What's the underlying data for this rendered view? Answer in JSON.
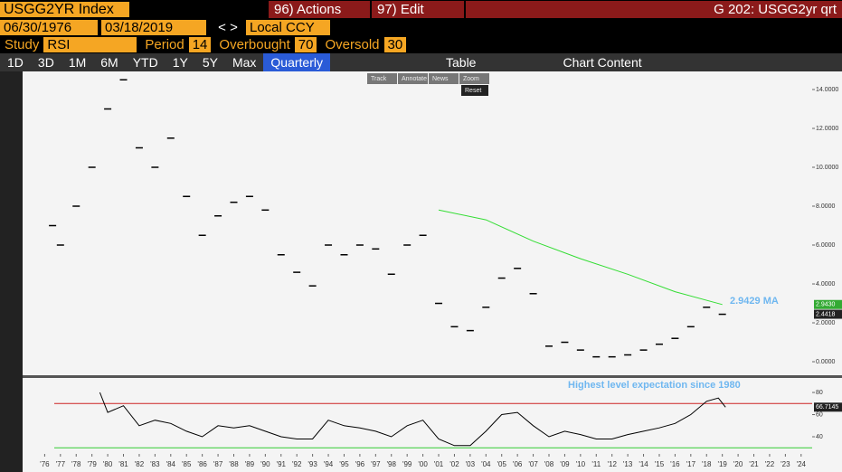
{
  "toolbar": {
    "ticker": "USGG2YR Index",
    "actions": "96) Actions",
    "edit": "97) Edit",
    "title": "G 202: USGG2yr qrt",
    "start_date": "06/30/1976",
    "end_date": "03/18/2019",
    "currency": "Local CCY"
  },
  "study": {
    "label": "Study",
    "value": "RSI",
    "period_label": "Period",
    "period": "14",
    "overbought_label": "Overbought",
    "overbought": "70",
    "oversold_label": "Oversold",
    "oversold": "30"
  },
  "range_buttons": [
    "1D",
    "3D",
    "1M",
    "6M",
    "YTD",
    "1Y",
    "5Y",
    "Max",
    "Quarterly",
    "Table",
    "Chart Content"
  ],
  "mini_toolbar": [
    "Track",
    "Annotate",
    "News",
    "Zoom",
    "Reset"
  ],
  "chart_data": [
    {
      "type": "line",
      "xlim": [
        1974.6,
        2024.7
      ],
      "ylim": [
        -0.65,
        14.93
      ],
      "xticks": [],
      "yticks": [
        {
          "value": 0,
          "label": "0.0000"
        },
        {
          "value": 2,
          "label": "2.0000"
        },
        {
          "value": 4,
          "label": "4.0000"
        },
        {
          "value": 6,
          "label": "6.0000"
        },
        {
          "value": 8,
          "label": "8.0000"
        },
        {
          "value": 10,
          "label": "10.0000"
        },
        {
          "value": 12,
          "label": "12.0000"
        },
        {
          "value": 14,
          "label": "14.0000"
        }
      ],
      "annotation": "2.9429 MA",
      "series": [
        {
          "color": "#000000",
          "style": "ticks",
          "x": [
            1976.5,
            1977,
            1978,
            1979,
            1980,
            1981,
            1982,
            1983,
            1984,
            1985,
            1986,
            1987,
            1988,
            1989,
            1990,
            1991,
            1992,
            1993,
            1994,
            1995,
            1996,
            1997,
            1998,
            1999,
            2000,
            2001,
            2002,
            2003,
            2004,
            2005,
            2006,
            2007,
            2008,
            2009,
            2010,
            2011,
            2012,
            2013,
            2014,
            2015,
            2016,
            2017,
            2018,
            2019
          ],
          "values": [
            7.0,
            6.0,
            8.0,
            10.0,
            13.0,
            14.5,
            11.0,
            10.0,
            11.5,
            8.5,
            6.5,
            7.5,
            8.2,
            8.5,
            7.8,
            5.5,
            4.6,
            3.9,
            6.0,
            5.5,
            6.0,
            5.8,
            4.5,
            6.0,
            6.5,
            3.0,
            1.8,
            1.6,
            2.8,
            4.3,
            4.8,
            3.5,
            0.8,
            1.0,
            0.6,
            0.25,
            0.25,
            0.35,
            0.6,
            0.9,
            1.2,
            1.8,
            2.8,
            2.44
          ],
          "last_value": 2.4418,
          "last_value_label": "2.4418"
        },
        {
          "color": "#33dd33",
          "style": "line",
          "x": [
            2001,
            2004,
            2007,
            2010,
            2013,
            2016,
            2019
          ],
          "values": [
            7.8,
            7.3,
            6.2,
            5.3,
            4.5,
            3.6,
            2.94
          ],
          "last_value": 2.943,
          "last_value_label": "2.9430"
        }
      ]
    },
    {
      "type": "line",
      "xlim": [
        1974.6,
        2024.7
      ],
      "ylim": [
        24.5,
        93.1
      ],
      "xticks": [
        {
          "value": 1976,
          "label": "'76"
        },
        {
          "value": 1977,
          "label": "'77"
        },
        {
          "value": 1978,
          "label": "'78"
        },
        {
          "value": 1979,
          "label": "'79"
        },
        {
          "value": 1980,
          "label": "'80"
        },
        {
          "value": 1981,
          "label": "'81"
        },
        {
          "value": 1982,
          "label": "'82"
        },
        {
          "value": 1983,
          "label": "'83"
        },
        {
          "value": 1984,
          "label": "'84"
        },
        {
          "value": 1985,
          "label": "'85"
        },
        {
          "value": 1986,
          "label": "'86"
        },
        {
          "value": 1987,
          "label": "'87"
        },
        {
          "value": 1988,
          "label": "'88"
        },
        {
          "value": 1989,
          "label": "'89"
        },
        {
          "value": 1990,
          "label": "'90"
        },
        {
          "value": 1991,
          "label": "'91"
        },
        {
          "value": 1992,
          "label": "'92"
        },
        {
          "value": 1993,
          "label": "'93"
        },
        {
          "value": 1994,
          "label": "'94"
        },
        {
          "value": 1995,
          "label": "'95"
        },
        {
          "value": 1996,
          "label": "'96"
        },
        {
          "value": 1997,
          "label": "'97"
        },
        {
          "value": 1998,
          "label": "'98"
        },
        {
          "value": 1999,
          "label": "'99"
        },
        {
          "value": 2000,
          "label": "'00"
        },
        {
          "value": 2001,
          "label": "'01"
        },
        {
          "value": 2002,
          "label": "'02"
        },
        {
          "value": 2003,
          "label": "'03"
        },
        {
          "value": 2004,
          "label": "'04"
        },
        {
          "value": 2005,
          "label": "'05"
        },
        {
          "value": 2006,
          "label": "'06"
        },
        {
          "value": 2007,
          "label": "'07"
        },
        {
          "value": 2008,
          "label": "'08"
        },
        {
          "value": 2009,
          "label": "'09"
        },
        {
          "value": 2010,
          "label": "'10"
        },
        {
          "value": 2011,
          "label": "'11"
        },
        {
          "value": 2012,
          "label": "'12"
        },
        {
          "value": 2013,
          "label": "'13"
        },
        {
          "value": 2014,
          "label": "'14"
        },
        {
          "value": 2015,
          "label": "'15"
        },
        {
          "value": 2016,
          "label": "'16"
        },
        {
          "value": 2017,
          "label": "'17"
        },
        {
          "value": 2018,
          "label": "'18"
        },
        {
          "value": 2019,
          "label": "'19"
        },
        {
          "value": 2020,
          "label": "'20"
        },
        {
          "value": 2021,
          "label": "'21"
        },
        {
          "value": 2022,
          "label": "'22"
        },
        {
          "value": 2023,
          "label": "'23"
        },
        {
          "value": 2024,
          "label": "'24"
        }
      ],
      "yticks": [
        40,
        60,
        80
      ],
      "hlines": [
        {
          "value": 70,
          "color": "#cc2222"
        },
        {
          "value": 30,
          "color": "#33cc33"
        }
      ],
      "annotation": "Highest level expectation since 1980",
      "series": [
        {
          "color": "#000000",
          "style": "line",
          "x": [
            1979.5,
            1980,
            1981,
            1982,
            1983,
            1984,
            1985,
            1986,
            1987,
            1988,
            1989,
            1990,
            1991,
            1992,
            1993,
            1994,
            1995,
            1996,
            1997,
            1998,
            1999,
            2000,
            2001,
            2002,
            2003,
            2004,
            2005,
            2006,
            2007,
            2008,
            2009,
            2010,
            2011,
            2012,
            2013,
            2014,
            2015,
            2016,
            2017,
            2018,
            2018.75,
            2019.2
          ],
          "values": [
            80,
            62,
            68,
            50,
            55,
            52,
            45,
            40,
            50,
            48,
            50,
            45,
            40,
            38,
            38,
            55,
            50,
            48,
            45,
            40,
            50,
            55,
            38,
            32,
            32,
            45,
            60,
            62,
            50,
            40,
            45,
            42,
            38,
            38,
            42,
            45,
            48,
            52,
            60,
            72,
            75,
            66.71
          ],
          "last_value": 66.7145,
          "last_value_label": "66.7145"
        }
      ]
    }
  ]
}
